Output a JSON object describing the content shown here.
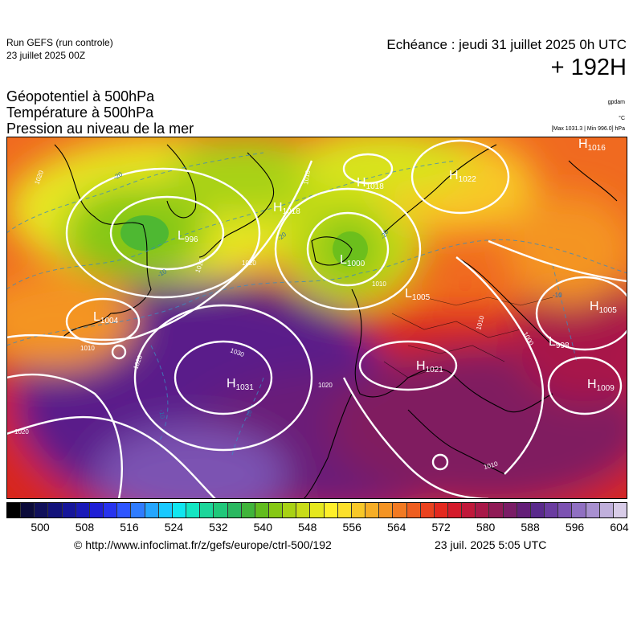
{
  "header": {
    "run_title": "Run GEFS (run controle)",
    "run_date": "23 juillet 2025 00Z",
    "echeance": "Echéance : jeudi 31 juillet 2025 0h UTC",
    "lead": "+ 192H"
  },
  "params": {
    "line1": "Géopotentiel à 500hPa",
    "line2": "Température à 500hPa",
    "line3": "Pression au niveau de la mer",
    "unit_geo": "gpdam",
    "unit_temp": "°C",
    "minmax": "[Max 1031.3 | Min 996.0] hPa"
  },
  "colorbar": {
    "colors": [
      "#000000",
      "#0b0b3a",
      "#10105a",
      "#12127a",
      "#16169a",
      "#1a1ab8",
      "#1f1fd6",
      "#2733ee",
      "#2d55ff",
      "#2f7cff",
      "#25a6ff",
      "#19c9ff",
      "#11e6f0",
      "#14e6c2",
      "#1cd69a",
      "#20c87a",
      "#2ab860",
      "#40b43a",
      "#62bc1e",
      "#86c814",
      "#a8d214",
      "#c8dc18",
      "#e6e81e",
      "#fff02a",
      "#fce02a",
      "#f8c828",
      "#f6ae26",
      "#f49424",
      "#f27a22",
      "#ee5e20",
      "#ea421e",
      "#e4281e",
      "#d41a2a",
      "#c0183a",
      "#a81848",
      "#901a56",
      "#7a1c66",
      "#641e78",
      "#5a2a8c",
      "#6a3ca0",
      "#7c52b2",
      "#9070c2",
      "#a890d0",
      "#c0b0dc",
      "#d8cce8"
    ],
    "labels": [
      "500",
      "508",
      "516",
      "524",
      "532",
      "540",
      "548",
      "556",
      "564",
      "572",
      "580",
      "588",
      "596",
      "604"
    ]
  },
  "highs": [
    {
      "letter": "H",
      "value": "1016"
    },
    {
      "letter": "H",
      "value": "1022"
    },
    {
      "letter": "H",
      "value": "1018"
    },
    {
      "letter": "H",
      "value": "1018"
    },
    {
      "letter": "H",
      "value": "1031"
    },
    {
      "letter": "H",
      "value": "1021"
    },
    {
      "letter": "H",
      "value": "1005"
    },
    {
      "letter": "H",
      "value": "1009"
    }
  ],
  "lows": [
    {
      "letter": "L",
      "value": "1000"
    },
    {
      "letter": "L",
      "value": "996"
    },
    {
      "letter": "L",
      "value": "1004"
    },
    {
      "letter": "L",
      "value": "998"
    },
    {
      "letter": "L",
      "value": "1005"
    }
  ],
  "isobar_labels": [
    "1020",
    "1020",
    "1030",
    "1020",
    "1010",
    "1010",
    "1020",
    "1010",
    "1010",
    "1020",
    "1010",
    "1000",
    "1010"
  ],
  "temp_labels": [
    "-20",
    "-20",
    "-20",
    "-10",
    "-10",
    "-10",
    "-10"
  ],
  "footer": {
    "source": "© http://www.infoclimat.fr/z/gefs/europe/ctrl-500/192",
    "generated": "23 juil. 2025  5:05 UTC"
  }
}
